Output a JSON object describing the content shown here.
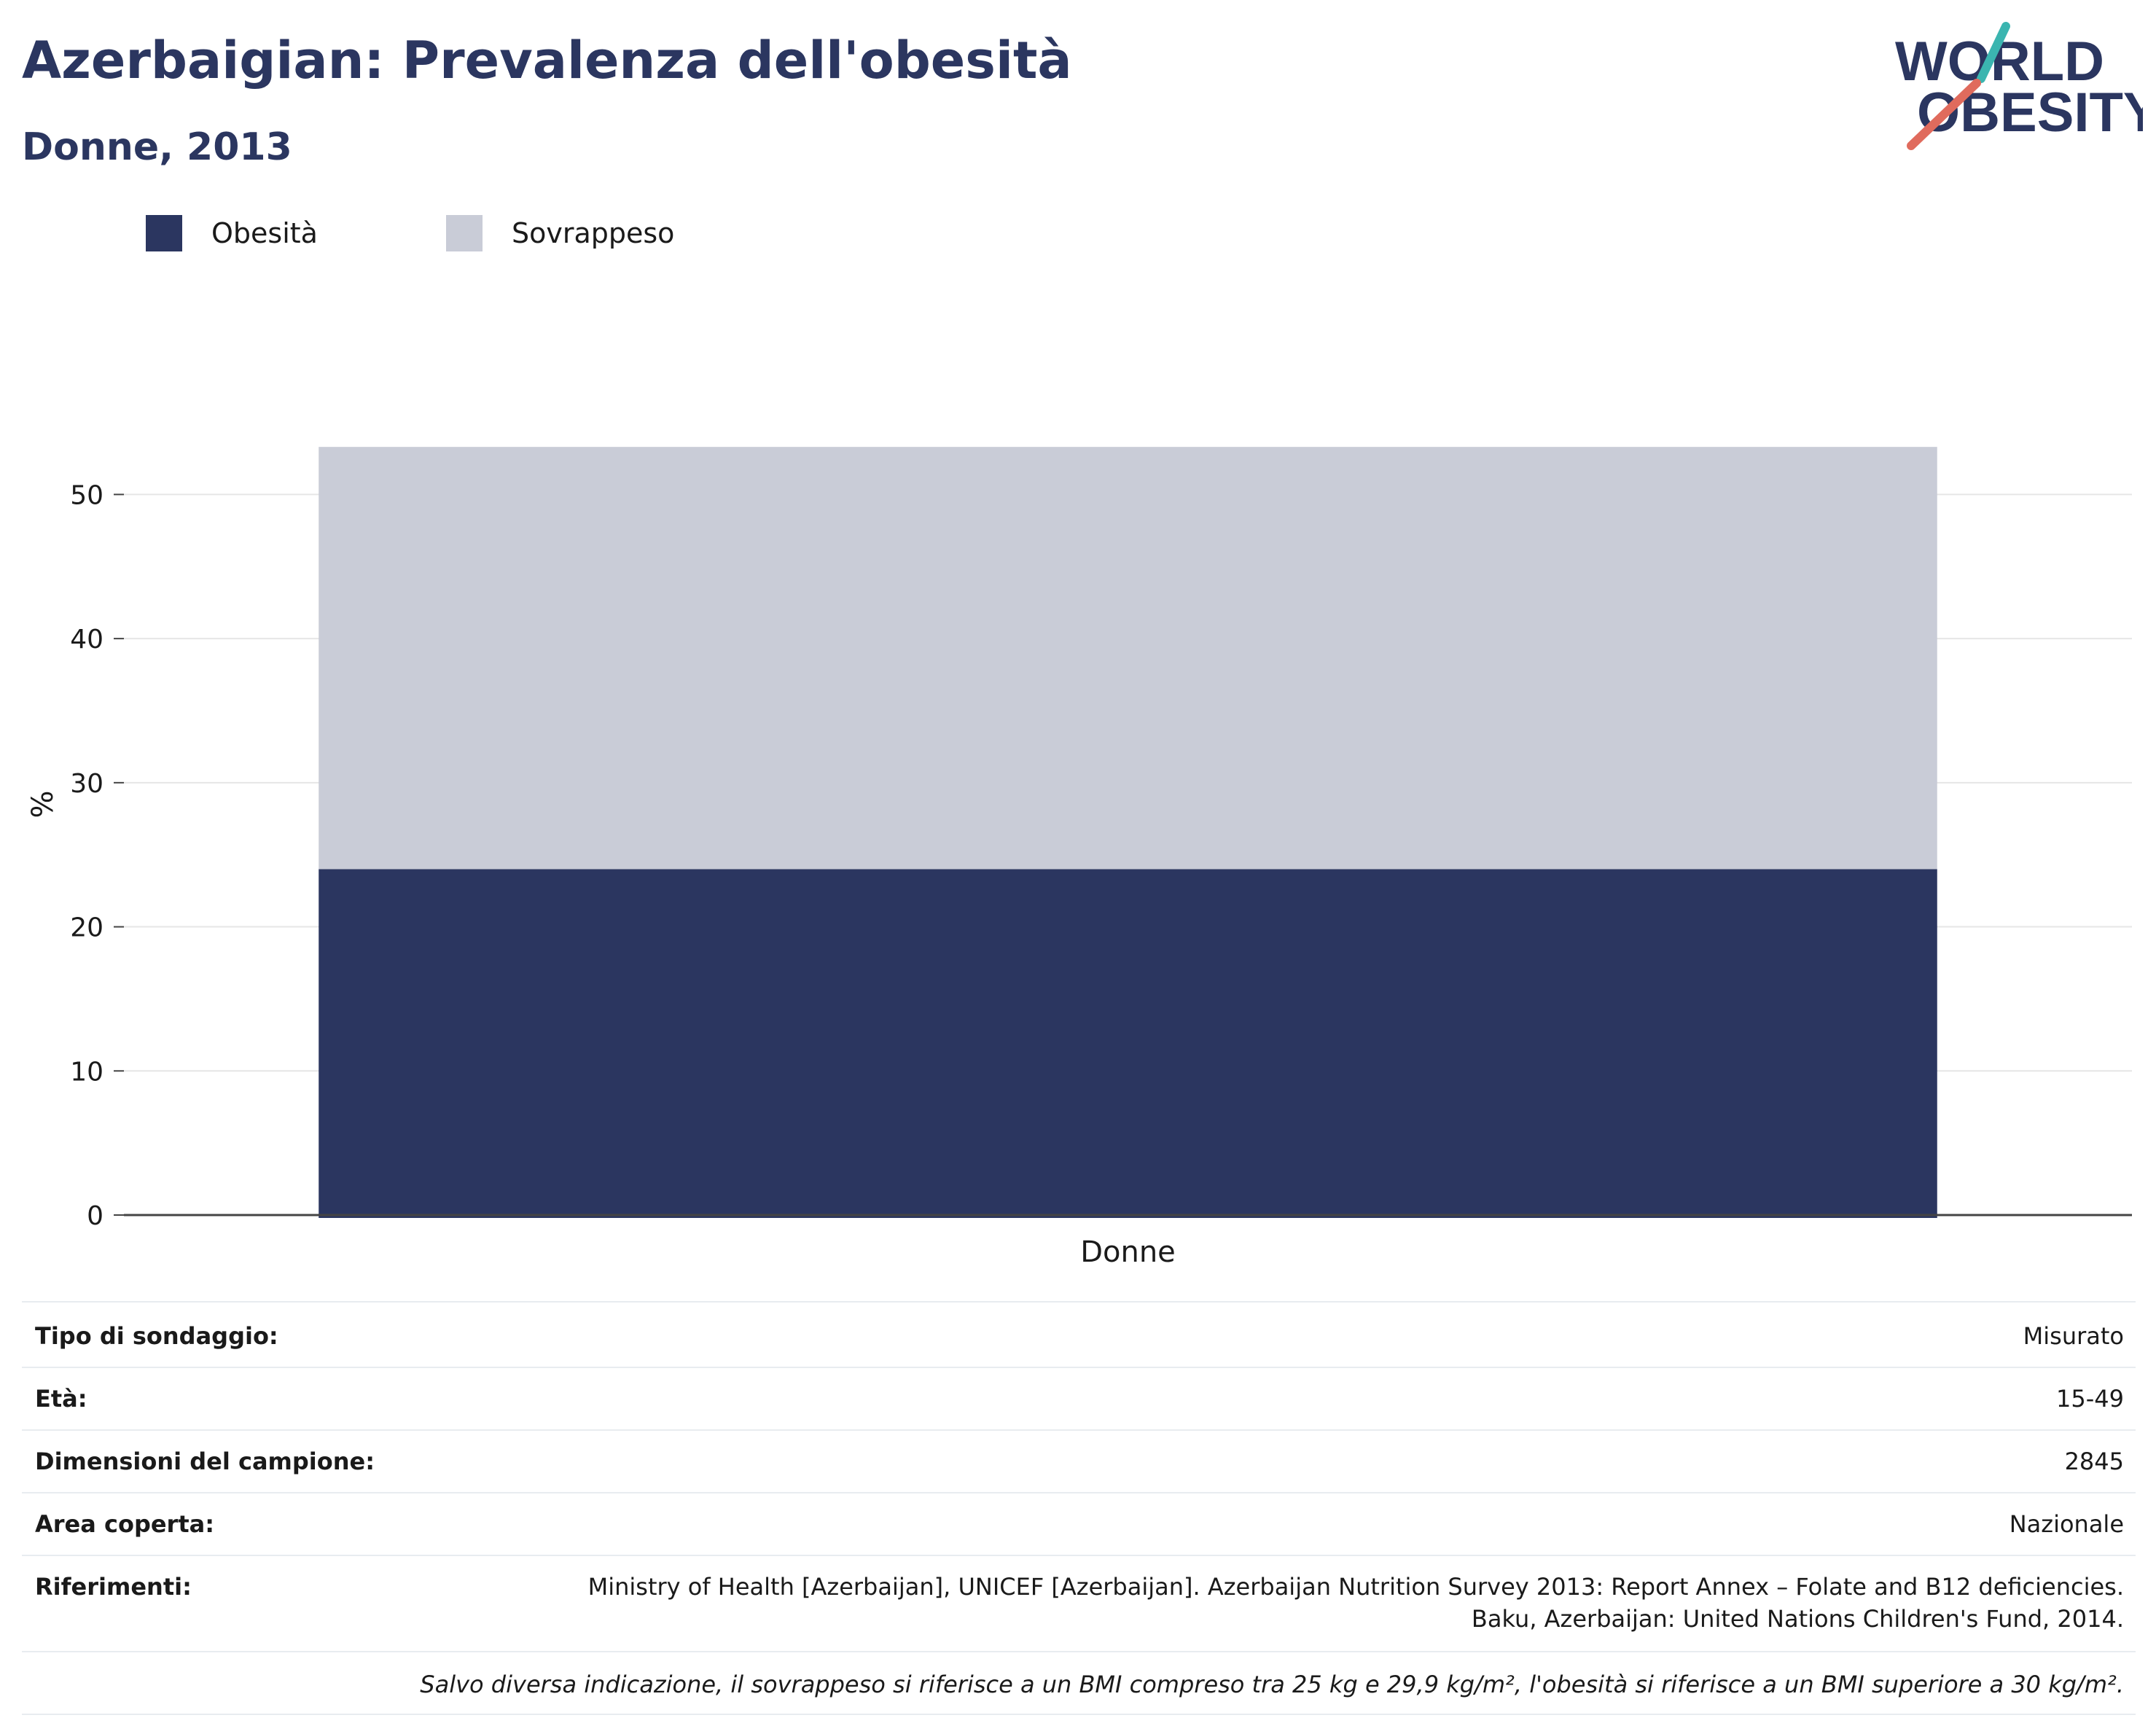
{
  "header": {
    "title": "Azerbaigian: Prevalenza dell'obesità",
    "subtitle": "Donne, 2013"
  },
  "logo": {
    "line1": "WORLD",
    "line2": "OBESITY",
    "accent_colors": [
      "#3bb5b0",
      "#e06b5d"
    ],
    "text_color": "#2b3660"
  },
  "legend": {
    "items": [
      {
        "label": "Obesità",
        "color": "#2b3660"
      },
      {
        "label": "Sovrappeso",
        "color": "#c9ccd7"
      }
    ]
  },
  "chart_data": {
    "type": "bar",
    "stacked": true,
    "categories": [
      "Donne"
    ],
    "series": [
      {
        "name": "Obesità",
        "values": [
          24
        ],
        "color": "#2b3660"
      },
      {
        "name": "Sovrappeso",
        "values": [
          29.3
        ],
        "color": "#c9ccd7"
      }
    ],
    "ylabel": "%",
    "xlabel": "",
    "ylim": [
      0,
      57
    ],
    "yticks": [
      0,
      10,
      20,
      30,
      40,
      50
    ],
    "grid": true,
    "legend_position": "top-left"
  },
  "info": {
    "rows": [
      {
        "key": "Tipo di sondaggio:",
        "value": "Misurato"
      },
      {
        "key": "Età:",
        "value": "15-49"
      },
      {
        "key": "Dimensioni del campione:",
        "value": "2845"
      },
      {
        "key": "Area coperta:",
        "value": "Nazionale"
      },
      {
        "key": "Riferimenti:",
        "value_lines": [
          "Ministry of Health [Azerbaijan], UNICEF [Azerbaijan]. Azerbaijan Nutrition Survey 2013: Report Annex – Folate and B12 deficiencies.",
          "Baku, Azerbaijan: United Nations Children's Fund, 2014."
        ]
      }
    ],
    "note": "Salvo diversa indicazione, il sovrappeso si riferisce a un BMI compreso tra 25 kg e 29,9 kg/m², l'obesità si riferisce a un BMI superiore a 30 kg/m²."
  }
}
